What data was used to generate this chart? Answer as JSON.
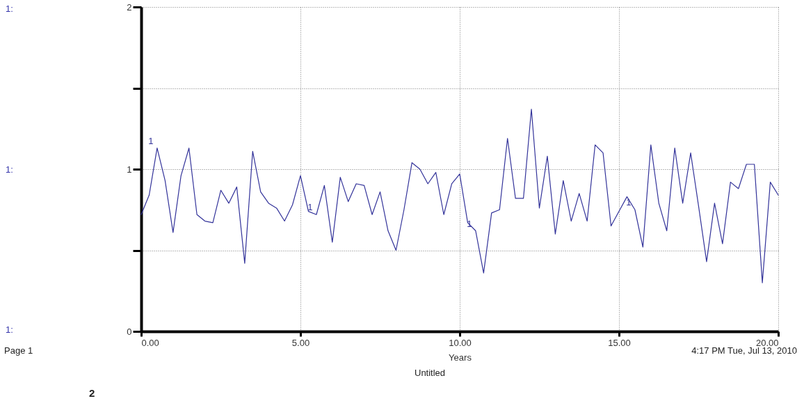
{
  "chart_data": {
    "type": "line",
    "xlabel": "Years",
    "x": [
      0,
      0.25,
      0.5,
      0.75,
      1,
      1.25,
      1.5,
      1.75,
      2,
      2.25,
      2.5,
      2.75,
      3,
      3.25,
      3.5,
      3.75,
      4,
      4.25,
      4.5,
      4.75,
      5,
      5.25,
      5.5,
      5.75,
      6,
      6.25,
      6.5,
      6.75,
      7,
      7.25,
      7.5,
      7.75,
      8,
      8.25,
      8.5,
      8.75,
      9,
      9.25,
      9.5,
      9.75,
      10,
      10.25,
      10.5,
      10.75,
      11,
      11.25,
      11.5,
      11.75,
      12,
      12.25,
      12.5,
      12.75,
      13,
      13.25,
      13.5,
      13.75,
      14,
      14.25,
      14.5,
      14.75,
      15,
      15.25,
      15.5,
      15.75,
      16,
      16.25,
      16.5,
      16.75,
      17,
      17.25,
      17.5,
      17.75,
      18,
      18.25,
      18.5,
      18.75,
      19,
      19.25,
      19.5,
      19.75,
      20
    ],
    "series": [
      {
        "name": "1",
        "color": "#33339a",
        "values": [
          0.72,
          0.84,
          1.13,
          0.93,
          0.61,
          0.96,
          1.13,
          0.72,
          0.68,
          0.67,
          0.87,
          0.79,
          0.89,
          0.42,
          1.11,
          0.86,
          0.79,
          0.76,
          0.68,
          0.78,
          0.96,
          0.74,
          0.72,
          0.9,
          0.55,
          0.95,
          0.8,
          0.91,
          0.9,
          0.72,
          0.86,
          0.62,
          0.5,
          0.75,
          1.04,
          1.0,
          0.91,
          0.98,
          0.72,
          0.91,
          0.97,
          0.67,
          0.62,
          0.36,
          0.73,
          0.75,
          1.19,
          0.82,
          0.82,
          1.37,
          0.76,
          1.08,
          0.6,
          0.93,
          0.68,
          0.85,
          0.68,
          1.15,
          1.1,
          0.65,
          0.74,
          0.83,
          0.75,
          0.52,
          1.15,
          0.79,
          0.62,
          1.13,
          0.79,
          1.1,
          0.77,
          0.43,
          0.79,
          0.54,
          0.92,
          0.88,
          1.03,
          1.03,
          0.3,
          0.92,
          0.84
        ]
      }
    ],
    "xlim": [
      0,
      20
    ],
    "xticks": [
      {
        "value": 0,
        "label": "0.00"
      },
      {
        "value": 5,
        "label": "5.00"
      },
      {
        "value": 10,
        "label": "10.00"
      },
      {
        "value": 15,
        "label": "15.00"
      },
      {
        "value": 20,
        "label": "20.00"
      }
    ],
    "ylim": [
      0,
      2
    ],
    "yticks": [
      0,
      {
        "value": 0.5,
        "label": null
      },
      1,
      {
        "value": 1.5,
        "label": null
      },
      2
    ],
    "grid": true,
    "line_style": "solid",
    "annotations": [
      "1:",
      "1:",
      "1:",
      "Page 1",
      "4:17 PM  Tue, Jul 13, 2010",
      "Untitled",
      "2"
    ]
  }
}
